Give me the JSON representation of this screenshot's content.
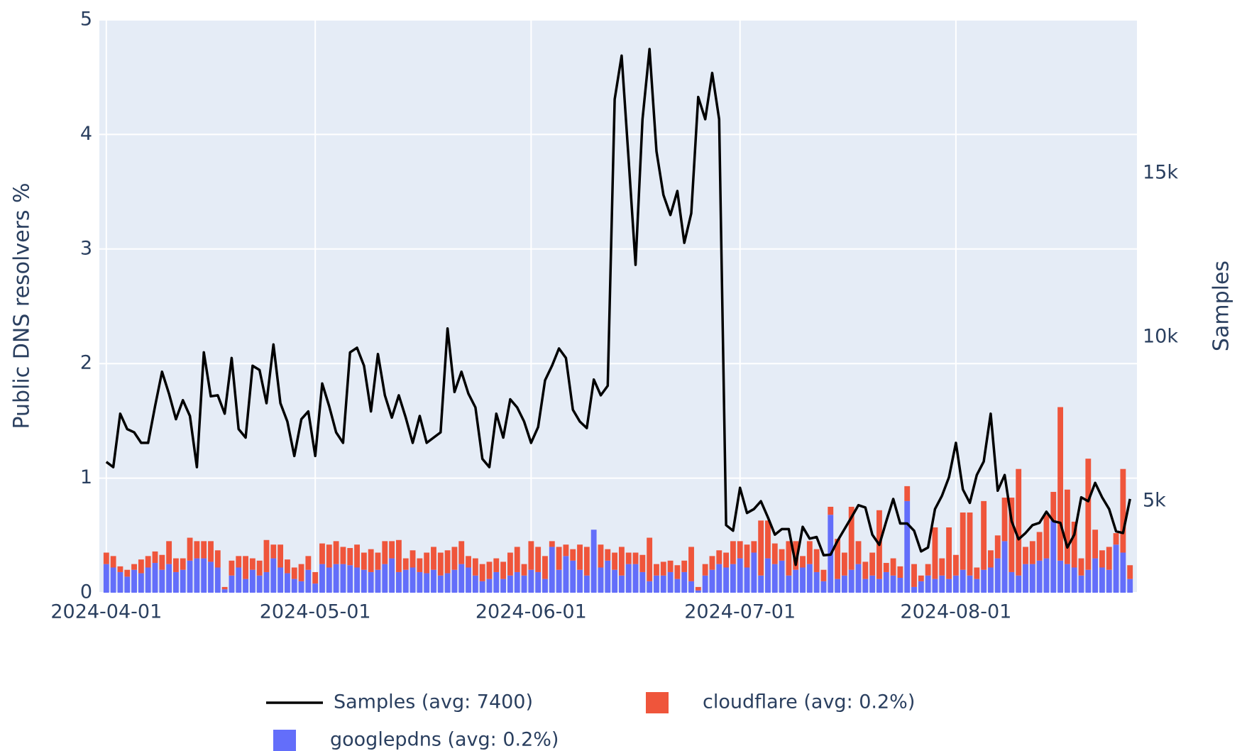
{
  "chart_data": {
    "type": "bar",
    "y_label": "Public DNS resolvers %",
    "y2_label": "Samples",
    "ylim": [
      0,
      5
    ],
    "yticks": [
      0,
      1,
      2,
      3,
      4,
      5
    ],
    "y2lim": [
      2210,
      19680
    ],
    "y2ticks": [
      {
        "value": 5000,
        "label": "5k"
      },
      {
        "value": 10000,
        "label": "10k"
      },
      {
        "value": 15000,
        "label": "15k"
      }
    ],
    "xlim": [
      "2024-03-31",
      "2024-08-27"
    ],
    "xticks": [
      "2024-04-01",
      "2024-05-01",
      "2024-06-01",
      "2024-07-01",
      "2024-08-01"
    ],
    "grid": true,
    "stacked": true,
    "x": [
      "2024-04-01",
      "2024-04-02",
      "2024-04-03",
      "2024-04-04",
      "2024-04-05",
      "2024-04-06",
      "2024-04-07",
      "2024-04-08",
      "2024-04-09",
      "2024-04-10",
      "2024-04-11",
      "2024-04-12",
      "2024-04-13",
      "2024-04-14",
      "2024-04-15",
      "2024-04-16",
      "2024-04-17",
      "2024-04-18",
      "2024-04-19",
      "2024-04-20",
      "2024-04-21",
      "2024-04-22",
      "2024-04-23",
      "2024-04-24",
      "2024-04-25",
      "2024-04-26",
      "2024-04-27",
      "2024-04-28",
      "2024-04-29",
      "2024-04-30",
      "2024-05-01",
      "2024-05-02",
      "2024-05-03",
      "2024-05-04",
      "2024-05-05",
      "2024-05-06",
      "2024-05-07",
      "2024-05-08",
      "2024-05-09",
      "2024-05-10",
      "2024-05-11",
      "2024-05-12",
      "2024-05-13",
      "2024-05-14",
      "2024-05-15",
      "2024-05-16",
      "2024-05-17",
      "2024-05-18",
      "2024-05-19",
      "2024-05-20",
      "2024-05-21",
      "2024-05-22",
      "2024-05-23",
      "2024-05-24",
      "2024-05-25",
      "2024-05-26",
      "2024-05-27",
      "2024-05-28",
      "2024-05-29",
      "2024-05-30",
      "2024-05-31",
      "2024-06-01",
      "2024-06-02",
      "2024-06-03",
      "2024-06-04",
      "2024-06-05",
      "2024-06-06",
      "2024-06-07",
      "2024-06-08",
      "2024-06-09",
      "2024-06-10",
      "2024-06-11",
      "2024-06-12",
      "2024-06-13",
      "2024-06-14",
      "2024-06-15",
      "2024-06-16",
      "2024-06-17",
      "2024-06-18",
      "2024-06-19",
      "2024-06-20",
      "2024-06-21",
      "2024-06-22",
      "2024-06-23",
      "2024-06-24",
      "2024-06-25",
      "2024-06-26",
      "2024-06-27",
      "2024-06-28",
      "2024-06-29",
      "2024-06-30",
      "2024-07-01",
      "2024-07-02",
      "2024-07-03",
      "2024-07-04",
      "2024-07-05",
      "2024-07-06",
      "2024-07-07",
      "2024-07-08",
      "2024-07-09",
      "2024-07-10",
      "2024-07-11",
      "2024-07-12",
      "2024-07-13",
      "2024-07-14",
      "2024-07-15",
      "2024-07-16",
      "2024-07-17",
      "2024-07-18",
      "2024-07-19",
      "2024-07-20",
      "2024-07-21",
      "2024-07-22",
      "2024-07-23",
      "2024-07-24",
      "2024-07-25",
      "2024-07-26",
      "2024-07-27",
      "2024-07-28",
      "2024-07-29",
      "2024-07-30",
      "2024-07-31",
      "2024-08-01",
      "2024-08-02",
      "2024-08-03",
      "2024-08-04",
      "2024-08-05",
      "2024-08-06",
      "2024-08-07",
      "2024-08-08",
      "2024-08-09",
      "2024-08-10",
      "2024-08-11",
      "2024-08-12",
      "2024-08-13",
      "2024-08-14",
      "2024-08-15",
      "2024-08-16",
      "2024-08-17",
      "2024-08-18",
      "2024-08-19",
      "2024-08-20",
      "2024-08-21",
      "2024-08-22",
      "2024-08-23",
      "2024-08-24",
      "2024-08-25",
      "2024-08-26"
    ],
    "series": [
      {
        "name": "Samples (avg: 7400)",
        "type": "line",
        "axis": "y2",
        "color": "#000000",
        "values": [
          6200,
          6040,
          7670,
          7200,
          7100,
          6780,
          6780,
          7900,
          8950,
          8280,
          7500,
          8080,
          7600,
          6040,
          9540,
          8200,
          8230,
          7670,
          9370,
          7200,
          6940,
          9130,
          9000,
          7990,
          9780,
          7990,
          7430,
          6380,
          7500,
          7740,
          6380,
          8590,
          7900,
          7100,
          6780,
          9540,
          9680,
          9130,
          7740,
          9490,
          8230,
          7550,
          8230,
          7550,
          6780,
          7600,
          6780,
          6940,
          7100,
          10270,
          8330,
          8950,
          8280,
          7860,
          6290,
          6040,
          7670,
          6940,
          8110,
          7860,
          7430,
          6780,
          7260,
          8690,
          9130,
          9660,
          9370,
          7790,
          7430,
          7230,
          8710,
          8230,
          8520,
          17260,
          18590,
          15440,
          12210,
          16650,
          18790,
          15670,
          14340,
          13730,
          14460,
          12880,
          13780,
          17330,
          16650,
          18060,
          16650,
          4270,
          4100,
          5410,
          4640,
          4760,
          5000,
          4510,
          3980,
          4150,
          4150,
          3060,
          4220,
          3860,
          3910,
          3350,
          3370,
          3790,
          4150,
          4510,
          4880,
          4810,
          3980,
          3670,
          4390,
          5070,
          4320,
          4320,
          4100,
          3470,
          3590,
          4760,
          5170,
          5730,
          6780,
          5360,
          4950,
          5800,
          6210,
          7670,
          5320,
          5800,
          4390,
          3840,
          4030,
          4270,
          4340,
          4680,
          4390,
          4340,
          3590,
          3980,
          5120,
          5000,
          5560,
          5120,
          4760,
          4080,
          4030,
          5070
        ]
      },
      {
        "name": "cloudflare (avg: 0.2%)",
        "type": "bar",
        "color": "#EF553B",
        "values": [
          0.1,
          0.1,
          0.05,
          0.06,
          0.05,
          0.12,
          0.1,
          0.1,
          0.13,
          0.2,
          0.12,
          0.1,
          0.2,
          0.15,
          0.15,
          0.18,
          0.15,
          0.02,
          0.13,
          0.1,
          0.2,
          0.1,
          0.13,
          0.28,
          0.12,
          0.2,
          0.12,
          0.1,
          0.15,
          0.12,
          0.1,
          0.18,
          0.2,
          0.2,
          0.15,
          0.15,
          0.2,
          0.15,
          0.2,
          0.15,
          0.2,
          0.15,
          0.28,
          0.1,
          0.15,
          0.12,
          0.18,
          0.2,
          0.2,
          0.2,
          0.2,
          0.2,
          0.1,
          0.15,
          0.15,
          0.15,
          0.12,
          0.15,
          0.2,
          0.22,
          0.1,
          0.25,
          0.22,
          0.2,
          0.05,
          0.2,
          0.1,
          0.1,
          0.22,
          0.25,
          0.0,
          0.2,
          0.1,
          0.15,
          0.25,
          0.1,
          0.1,
          0.15,
          0.38,
          0.1,
          0.12,
          0.1,
          0.12,
          0.1,
          0.3,
          0.03,
          0.1,
          0.12,
          0.12,
          0.13,
          0.2,
          0.15,
          0.2,
          0.1,
          0.48,
          0.33,
          0.18,
          0.1,
          0.3,
          0.25,
          0.1,
          0.2,
          0.2,
          0.1,
          0.07,
          0.35,
          0.2,
          0.55,
          0.2,
          0.15,
          0.2,
          0.6,
          0.08,
          0.15,
          0.1,
          0.13,
          0.2,
          0.05,
          0.1,
          0.45,
          0.15,
          0.45,
          0.18,
          0.5,
          0.55,
          0.1,
          0.6,
          0.15,
          0.2,
          0.38,
          0.65,
          0.93,
          0.15,
          0.2,
          0.25,
          0.38,
          0.25,
          1.34,
          0.65,
          0.4,
          0.15,
          0.97,
          0.25,
          0.15,
          0.2,
          0.1,
          0.73,
          0.12
        ]
      },
      {
        "name": "googlepdns (avg: 0.2%)",
        "type": "bar",
        "color": "#636EFA",
        "values": [
          0.25,
          0.22,
          0.18,
          0.14,
          0.2,
          0.17,
          0.22,
          0.26,
          0.2,
          0.25,
          0.18,
          0.2,
          0.28,
          0.3,
          0.3,
          0.27,
          0.22,
          0.03,
          0.15,
          0.22,
          0.12,
          0.2,
          0.15,
          0.18,
          0.3,
          0.22,
          0.17,
          0.12,
          0.1,
          0.2,
          0.08,
          0.25,
          0.22,
          0.25,
          0.25,
          0.24,
          0.22,
          0.2,
          0.18,
          0.2,
          0.25,
          0.3,
          0.18,
          0.2,
          0.22,
          0.18,
          0.17,
          0.2,
          0.15,
          0.17,
          0.2,
          0.25,
          0.22,
          0.15,
          0.1,
          0.12,
          0.18,
          0.12,
          0.15,
          0.18,
          0.15,
          0.2,
          0.18,
          0.12,
          0.4,
          0.2,
          0.32,
          0.28,
          0.2,
          0.15,
          0.55,
          0.22,
          0.28,
          0.2,
          0.15,
          0.25,
          0.25,
          0.18,
          0.1,
          0.15,
          0.15,
          0.18,
          0.12,
          0.18,
          0.1,
          0.02,
          0.15,
          0.2,
          0.25,
          0.22,
          0.25,
          0.3,
          0.22,
          0.35,
          0.15,
          0.3,
          0.25,
          0.28,
          0.15,
          0.2,
          0.22,
          0.25,
          0.18,
          0.1,
          0.68,
          0.12,
          0.15,
          0.2,
          0.25,
          0.12,
          0.15,
          0.12,
          0.18,
          0.15,
          0.13,
          0.8,
          0.05,
          0.1,
          0.15,
          0.12,
          0.15,
          0.12,
          0.15,
          0.2,
          0.15,
          0.12,
          0.2,
          0.22,
          0.3,
          0.45,
          0.18,
          0.15,
          0.25,
          0.25,
          0.28,
          0.3,
          0.63,
          0.28,
          0.25,
          0.22,
          0.15,
          0.2,
          0.3,
          0.22,
          0.2,
          0.42,
          0.35,
          0.12
        ]
      }
    ]
  }
}
